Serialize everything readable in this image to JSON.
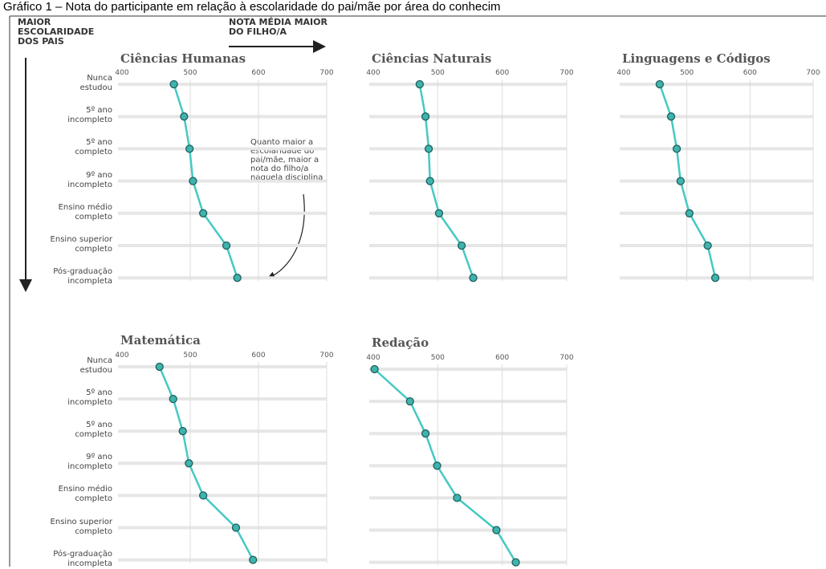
{
  "caption": "Gráfico 1 – Nota do participante em relação à escolaridade do pai/mãe por área do conhecim",
  "header": {
    "y_heading": "MAIOR\nESCOLARIDADE\nDOS PAIS",
    "x_heading": "NOTA MÉDIA MAIOR\nDO FILHO/A"
  },
  "annotation": "Quanto maior a\nescolaridade do\npai/mãe, maior a\nnota do filho/a\nnaquela disciplina",
  "chart_data": [
    {
      "type": "line",
      "title": "Ciências Humanas",
      "color": "#45c9c3",
      "categories": [
        "Nunca\nestudou",
        "5º ano\nincompleto",
        "5º ano\ncompleto",
        "9º ano\nincompleto",
        "Ensino médio\ncompleto",
        "Ensino superior\ncompleto",
        "Pós-graduação\nincompleta"
      ],
      "values": [
        476,
        491,
        499,
        504,
        519,
        553,
        569
      ],
      "xlim": [
        400,
        700
      ],
      "xticks": [
        400,
        500,
        600,
        700
      ],
      "grid": true
    },
    {
      "type": "line",
      "title": "Ciências Naturais",
      "color": "#45c9c3",
      "values": [
        472,
        481,
        486,
        488,
        502,
        537,
        555
      ],
      "xlim": [
        400,
        700
      ],
      "xticks": [
        400,
        500,
        600,
        700
      ],
      "grid": true
    },
    {
      "type": "line",
      "title": "Linguagens e Códigos",
      "color": "#45c9c3",
      "values": [
        457,
        475,
        484,
        490,
        504,
        533,
        545
      ],
      "xlim": [
        400,
        700
      ],
      "xticks": [
        400,
        500,
        600,
        700
      ],
      "grid": true
    },
    {
      "type": "line",
      "title": "Matemática",
      "color": "#45c9c3",
      "categories": [
        "Nunca\nestudou",
        "5º ano\nincompleto",
        "5º ano\ncompleto",
        "9º ano\nincompleto",
        "Ensino médio\ncompleto",
        "Ensino superior\ncompleto",
        "Pós-graduação\nincompleta"
      ],
      "values": [
        455,
        475,
        489,
        498,
        519,
        567,
        592
      ],
      "xlim": [
        400,
        700
      ],
      "xticks": [
        400,
        500,
        600,
        700
      ],
      "grid": true
    },
    {
      "type": "line",
      "title": "Redação",
      "color": "#45c9c3",
      "values": [
        402,
        457,
        481,
        499,
        530,
        591,
        621
      ],
      "xlim": [
        400,
        700
      ],
      "xticks": [
        400,
        500,
        600,
        700
      ],
      "grid": true
    }
  ]
}
